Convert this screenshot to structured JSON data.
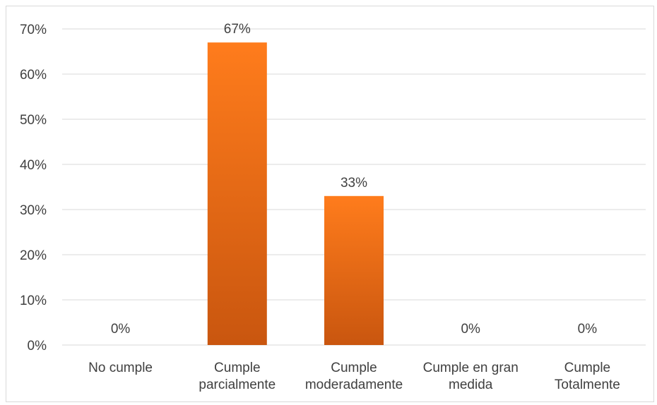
{
  "chart_data": {
    "type": "bar",
    "categories": [
      [
        "No cumple"
      ],
      [
        "Cumple",
        "parcialmente"
      ],
      [
        "Cumple",
        "moderadamente"
      ],
      [
        "Cumple en gran",
        "medida"
      ],
      [
        "Cumple",
        "Totalmente"
      ]
    ],
    "values": [
      0,
      67,
      33,
      0,
      0
    ],
    "data_labels": [
      "0%",
      "67%",
      "33%",
      "0%",
      "0%"
    ],
    "ylim": [
      0,
      70
    ],
    "yticks": [
      0,
      10,
      20,
      30,
      40,
      50,
      60,
      70
    ],
    "ytick_labels": [
      "0%",
      "10%",
      "20%",
      "30%",
      "40%",
      "50%",
      "60%",
      "70%"
    ],
    "grid": true,
    "legend": false,
    "colors": {
      "bar_top": "#ff7c1c",
      "bar_bottom": "#c9560f",
      "grid": "#d9d9d9",
      "text": "#404040"
    }
  }
}
